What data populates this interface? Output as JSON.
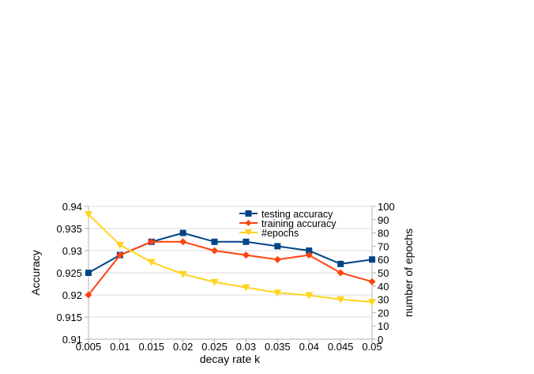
{
  "chart_data": {
    "type": "line",
    "xlabel": "decay rate k",
    "ylabel": "Accuracy",
    "y2label": "number of epochs",
    "categories": [
      "0.005",
      "0.01",
      "0.015",
      "0.02",
      "0.025",
      "0.03",
      "0.035",
      "0.04",
      "0.045",
      "0.05"
    ],
    "ylim": [
      0.91,
      0.94
    ],
    "yticks": [
      "0.91",
      "0.915",
      "0.92",
      "0.925",
      "0.93",
      "0.935",
      "0.94"
    ],
    "y2lim": [
      0,
      100
    ],
    "y2ticks": [
      "0",
      "10",
      "20",
      "30",
      "40",
      "50",
      "60",
      "70",
      "80",
      "90",
      "100"
    ],
    "grid": "horizontal",
    "legend_position": "top-right",
    "series": [
      {
        "name": "testing accuracy",
        "axis": "left",
        "color": "#004586",
        "marker": "square",
        "values": [
          0.925,
          0.929,
          0.932,
          0.934,
          0.932,
          0.932,
          0.931,
          0.93,
          0.927,
          0.928
        ]
      },
      {
        "name": "training accuracy",
        "axis": "left",
        "color": "#ff420e",
        "marker": "diamond",
        "values": [
          0.92,
          0.929,
          0.932,
          0.932,
          0.93,
          0.929,
          0.928,
          0.929,
          0.925,
          0.923
        ]
      },
      {
        "name": "#epochs",
        "axis": "right",
        "color": "#ffd320",
        "marker": "triangle-down",
        "values": [
          94,
          71,
          58,
          49,
          43,
          39,
          35,
          33,
          30,
          28
        ]
      }
    ]
  }
}
